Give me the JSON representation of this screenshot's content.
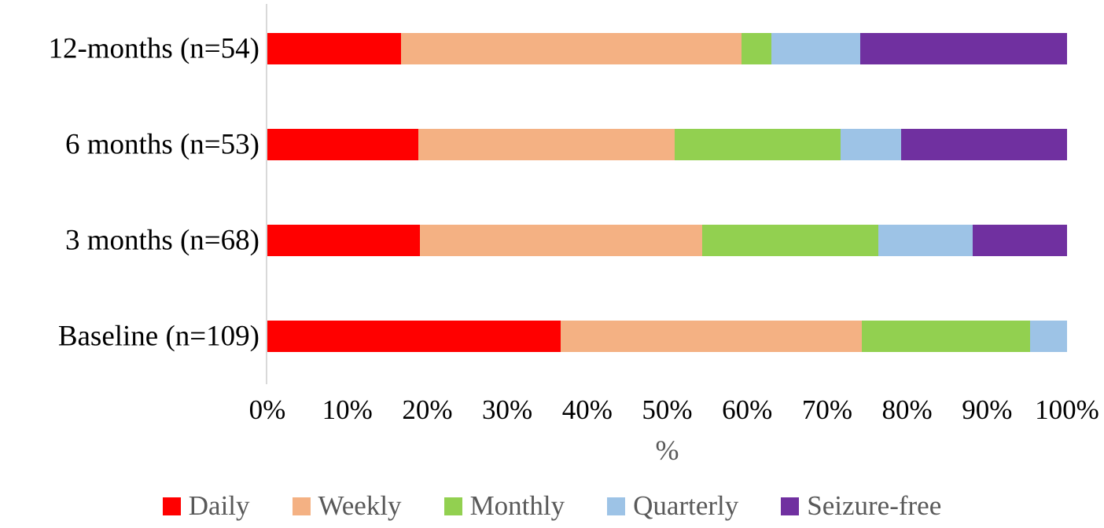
{
  "chart_data": {
    "type": "bar",
    "orientation": "horizontal",
    "stacked": true,
    "grid": false,
    "title": "",
    "xlabel": "%",
    "ylabel": "",
    "xlim": [
      0,
      100
    ],
    "x_ticks": [
      "0%",
      "10%",
      "20%",
      "30%",
      "40%",
      "50%",
      "60%",
      "70%",
      "80%",
      "90%",
      "100%"
    ],
    "categories": [
      "12-months (n=54)",
      "6 months (n=53)",
      "3 months (n=68)",
      "Baseline (n=109)"
    ],
    "series": [
      {
        "name": "Daily",
        "color": "#FF0000",
        "values": [
          16.7,
          18.9,
          19.1,
          36.7
        ]
      },
      {
        "name": "Weekly",
        "color": "#F4B183",
        "values": [
          42.6,
          32.1,
          35.3,
          37.6
        ]
      },
      {
        "name": "Monthly",
        "color": "#92D050",
        "values": [
          3.7,
          20.8,
          22.1,
          21.1
        ]
      },
      {
        "name": "Quarterly",
        "color": "#9DC3E6",
        "values": [
          11.1,
          7.5,
          11.8,
          4.6
        ]
      },
      {
        "name": "Seizure-free",
        "color": "#7030A0",
        "values": [
          25.9,
          20.8,
          11.8,
          0
        ]
      }
    ],
    "legend_position": "bottom",
    "legend_labels": [
      "Daily",
      "Weekly",
      "Monthly",
      "Quarterly",
      "Seizure-free"
    ]
  },
  "colors": {
    "axis_line": "#d9d9d9",
    "category_label_text": "#000000",
    "tick_label_text": "#000000",
    "axis_title_text": "#595959",
    "legend_text": "#595959",
    "background": "#ffffff"
  }
}
